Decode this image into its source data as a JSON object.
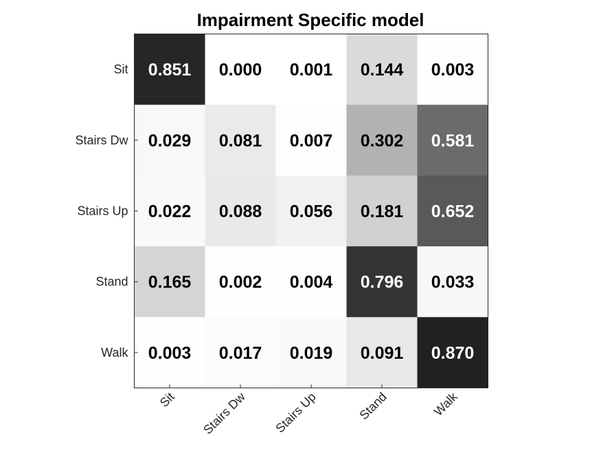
{
  "chart_data": {
    "type": "heatmap",
    "title": "Impairment Specific model",
    "xlabel": "",
    "ylabel": "",
    "x_categories": [
      "Sit",
      "Stairs Dw",
      "Stairs Up",
      "Stand",
      "Walk"
    ],
    "y_categories": [
      "Sit",
      "Stairs Dw",
      "Stairs Up",
      "Stand",
      "Walk"
    ],
    "values": [
      [
        0.851,
        0.0,
        0.001,
        0.144,
        0.003
      ],
      [
        0.029,
        0.081,
        0.007,
        0.302,
        0.581
      ],
      [
        0.022,
        0.088,
        0.056,
        0.181,
        0.652
      ],
      [
        0.165,
        0.002,
        0.004,
        0.796,
        0.033
      ],
      [
        0.003,
        0.017,
        0.019,
        0.091,
        0.87
      ]
    ],
    "value_labels": [
      [
        "0.851",
        "0.000",
        "0.001",
        "0.144",
        "0.003"
      ],
      [
        "0.029",
        "0.081",
        "0.007",
        "0.302",
        "0.581"
      ],
      [
        "0.022",
        "0.088",
        "0.056",
        "0.181",
        "0.652"
      ],
      [
        "0.165",
        "0.002",
        "0.004",
        "0.796",
        "0.033"
      ],
      [
        "0.003",
        "0.017",
        "0.019",
        "0.091",
        "0.870"
      ]
    ],
    "colormap": "gray-reversed",
    "color_low": "#ffffff",
    "color_high": "#000000",
    "label_color_on_light": "#000000",
    "label_color_on_dark": "#ffffff",
    "x_tick_rotation_deg": 45,
    "grid": false,
    "legend": "none"
  }
}
